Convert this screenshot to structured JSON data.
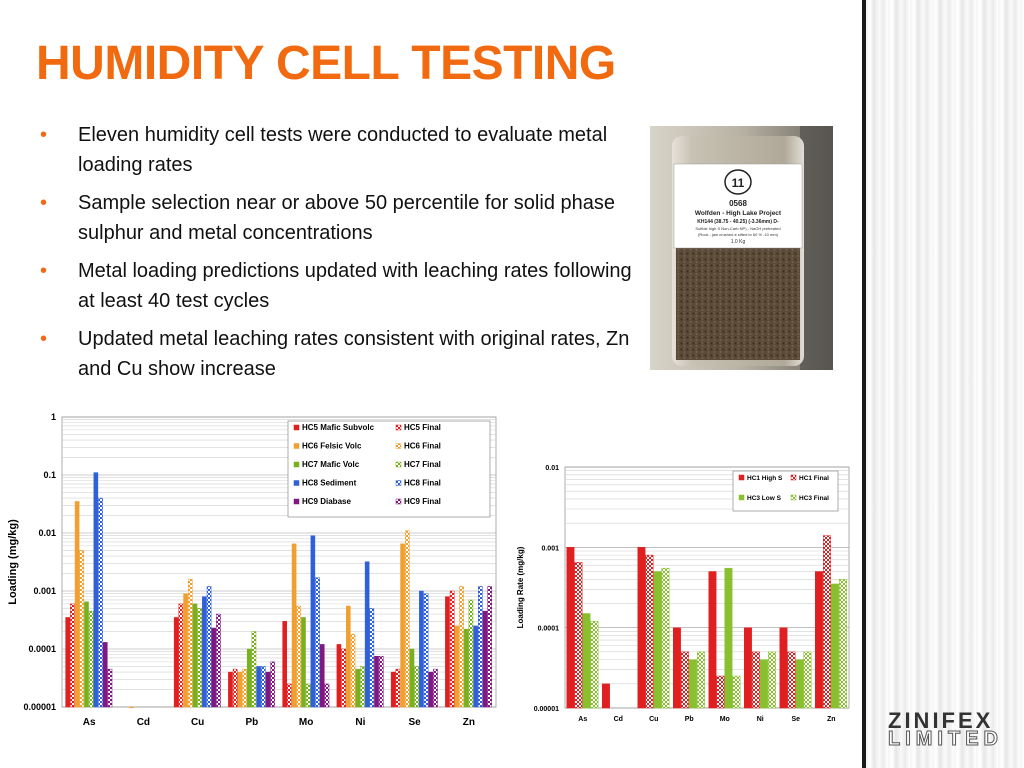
{
  "slide": {
    "title": "HUMIDITY CELL TESTING",
    "bullets": [
      "Eleven humidity cell tests were conducted to evaluate metal loading rates",
      "Sample selection near or above 50 percentile for solid phase sulphur and metal concentrations",
      "Metal loading predictions updated with leaching rates following at least 40 test cycles",
      "Updated metal leaching rates consistent with original rates, Zn and Cu show increase"
    ],
    "bullet_marker": "•",
    "photo_label": {
      "number": "11",
      "code": "0568",
      "project": "Wolfden - High Lake Project",
      "sample": "KH144 (38.75 - 40.25) (-3.36mm) D-",
      "note1": "Sulfide high S Non-Carb NP) - NaOH pretreated",
      "note2": "(Rock - jaw crushed ≠ sifted to 60 % -10 mm)",
      "weight": "1.0 Kg"
    },
    "logo": {
      "line1": "ZINIFEX",
      "line2": "LIMITED"
    },
    "colors": {
      "title": "#f26a10",
      "bullet": "#f26a10"
    }
  },
  "chart_data": [
    {
      "type": "bar",
      "scale": "log",
      "ylabel": "Loading (mg/kg)",
      "xlabel": "",
      "ylim": [
        1e-05,
        1
      ],
      "y_ticks": [
        "0.00001",
        "0.0001",
        "0.001",
        "0.01",
        "0.1",
        "1"
      ],
      "categories": [
        "As",
        "Cd",
        "Cu",
        "Pb",
        "Mo",
        "Ni",
        "Se",
        "Zn"
      ],
      "legend_position": "top-right",
      "series": [
        {
          "name": "HC5 Mafic Subvolc",
          "color": "#e02020",
          "pattern": "solid",
          "values": [
            0.00035,
            null,
            0.00035,
            4e-05,
            0.0003,
            0.00012,
            4e-05,
            0.0008
          ]
        },
        {
          "name": "HC5 Final",
          "color": "#e02020",
          "pattern": "hatched",
          "values": [
            0.0006,
            null,
            0.0006,
            4.5e-05,
            2.5e-05,
            0.0001,
            4.5e-05,
            0.001
          ]
        },
        {
          "name": "HC6 Felsic Volc",
          "color": "#f0a030",
          "pattern": "solid",
          "values": [
            0.035,
            1e-05,
            0.0009,
            4e-05,
            0.0065,
            0.00055,
            0.0065,
            0.00025
          ]
        },
        {
          "name": "HC6 Final",
          "color": "#f0a030",
          "pattern": "hatched",
          "values": [
            0.005,
            null,
            0.0016,
            4.5e-05,
            0.00055,
            0.00018,
            0.011,
            0.0012
          ]
        },
        {
          "name": "HC7 Mafic Volc",
          "color": "#78b020",
          "pattern": "solid",
          "values": [
            0.00065,
            null,
            0.0006,
            0.0001,
            0.00035,
            4.5e-05,
            0.0001,
            0.00022
          ]
        },
        {
          "name": "HC7 Final",
          "color": "#78b020",
          "pattern": "hatched",
          "values": [
            0.00045,
            null,
            0.0005,
            0.0002,
            2.5e-05,
            5e-05,
            5e-05,
            0.0007
          ]
        },
        {
          "name": "HC8 Sediment",
          "color": "#3060d8",
          "pattern": "solid",
          "values": [
            0.11,
            null,
            0.0008,
            5e-05,
            0.009,
            0.0032,
            0.001,
            0.00025
          ]
        },
        {
          "name": "HC8 Final",
          "color": "#3060d8",
          "pattern": "hatched",
          "values": [
            0.04,
            null,
            0.0012,
            5e-05,
            0.0017,
            0.0005,
            0.0009,
            0.0012
          ]
        },
        {
          "name": "HC9 Diabase",
          "color": "#801880",
          "pattern": "solid",
          "values": [
            0.00013,
            null,
            0.00023,
            4e-05,
            0.00012,
            7.5e-05,
            4e-05,
            0.00045
          ]
        },
        {
          "name": "HC9 Final",
          "color": "#801880",
          "pattern": "hatched",
          "values": [
            4.5e-05,
            null,
            0.0004,
            6e-05,
            2.5e-05,
            7.5e-05,
            4.5e-05,
            0.0012
          ]
        }
      ]
    },
    {
      "type": "bar",
      "scale": "log",
      "ylabel": "Loading Rate (mg/kg)",
      "xlabel": "",
      "ylim": [
        1e-05,
        0.01
      ],
      "y_ticks": [
        "0.00001",
        "0.0001",
        "0.001",
        "0.01"
      ],
      "categories": [
        "As",
        "Cd",
        "Cu",
        "Pb",
        "Mo",
        "Ni",
        "Se",
        "Zn"
      ],
      "legend_position": "top-right",
      "series": [
        {
          "name": "HC1 High S",
          "color": "#e02020",
          "pattern": "solid",
          "values": [
            0.001,
            2e-05,
            0.001,
            0.0001,
            0.0005,
            0.0001,
            0.0001,
            0.0005
          ]
        },
        {
          "name": "HC1 Final",
          "color": "#e02020",
          "pattern": "hatched",
          "values": [
            0.00065,
            null,
            0.0008,
            5e-05,
            2.5e-05,
            5e-05,
            5e-05,
            0.0014
          ]
        },
        {
          "name": "HC3 Low S",
          "color": "#88c030",
          "pattern": "solid",
          "values": [
            0.00015,
            null,
            0.0005,
            4e-05,
            0.00055,
            4e-05,
            4e-05,
            0.00035
          ]
        },
        {
          "name": "HC3 Final",
          "color": "#88c030",
          "pattern": "hatched",
          "values": [
            0.00012,
            null,
            0.00055,
            5e-05,
            2.5e-05,
            5e-05,
            5e-05,
            0.0004
          ]
        }
      ]
    }
  ]
}
